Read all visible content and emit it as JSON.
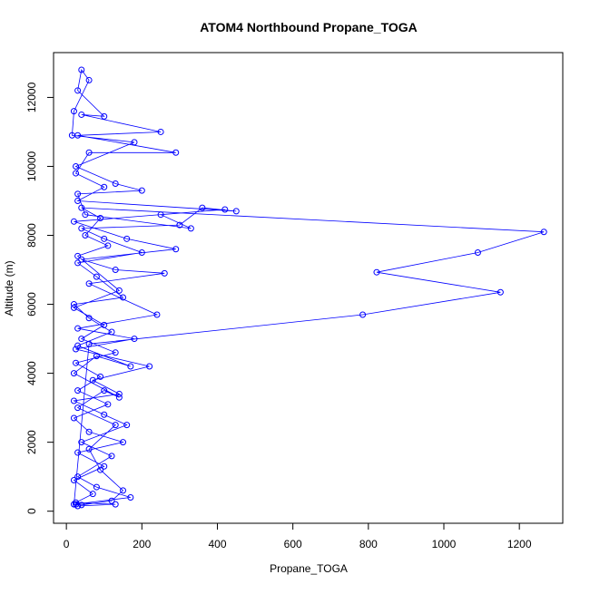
{
  "chart_data": {
    "type": "scatter",
    "title": "ATOM4 Northbound Propane_TOGA",
    "x_label": "Propane_TOGA",
    "y_label": "Altitude (m)",
    "color": "#0000ff",
    "connect": true,
    "xlim": [
      -34,
      1315
    ],
    "ylim": [
      -350,
      13300
    ],
    "xticks": [
      0,
      200,
      400,
      600,
      800,
      1000,
      1200
    ],
    "yticks": [
      0,
      2000,
      4000,
      6000,
      8000,
      10000,
      12000
    ],
    "x": [
      25,
      40,
      120,
      150,
      90,
      60,
      130,
      30,
      100,
      140,
      20,
      80,
      170,
      30,
      120,
      60,
      20,
      150,
      80,
      30,
      200,
      100,
      40,
      300,
      360,
      450,
      30,
      100,
      25,
      60,
      290,
      30,
      250,
      40,
      100,
      30,
      40,
      60,
      20,
      15,
      180,
      25,
      130,
      200,
      30,
      50,
      330,
      250,
      420,
      20,
      160,
      290,
      40,
      130,
      260,
      60,
      240,
      30,
      180,
      25,
      220,
      70,
      140,
      20,
      100,
      160,
      40,
      120,
      30,
      80,
      170,
      20,
      60,
      785,
      1150,
      822,
      1090,
      1265,
      40,
      90,
      50,
      110,
      30,
      140,
      20,
      100,
      40,
      130,
      25,
      90,
      30,
      110,
      20,
      60,
      150,
      30,
      100,
      20,
      70,
      25,
      130,
      30
    ],
    "values": [
      200,
      180,
      300,
      600,
      1200,
      1800,
      2500,
      3000,
      3500,
      3300,
      4000,
      4500,
      4200,
      4800,
      5200,
      5600,
      6000,
      6200,
      6800,
      7200,
      7500,
      7900,
      8200,
      8300,
      8800,
      8700,
      9000,
      9400,
      9800,
      10400,
      10400,
      10900,
      11000,
      11500,
      11450,
      12200,
      12800,
      12500,
      11600,
      10900,
      10700,
      10000,
      9500,
      9300,
      9200,
      8600,
      8200,
      8600,
      8750,
      8400,
      7900,
      7600,
      7300,
      7000,
      6900,
      6600,
      5700,
      5300,
      5000,
      4700,
      4200,
      3800,
      3400,
      3200,
      2800,
      2500,
      2000,
      1600,
      1000,
      700,
      400,
      200,
      4850,
      5700,
      6350,
      6930,
      7500,
      8100,
      8800,
      8500,
      8000,
      7700,
      7400,
      6400,
      5900,
      5400,
      5000,
      4600,
      4300,
      3900,
      3500,
      3100,
      2700,
      2300,
      2000,
      1700,
      1300,
      900,
      500,
      250,
      200,
      150
    ]
  }
}
